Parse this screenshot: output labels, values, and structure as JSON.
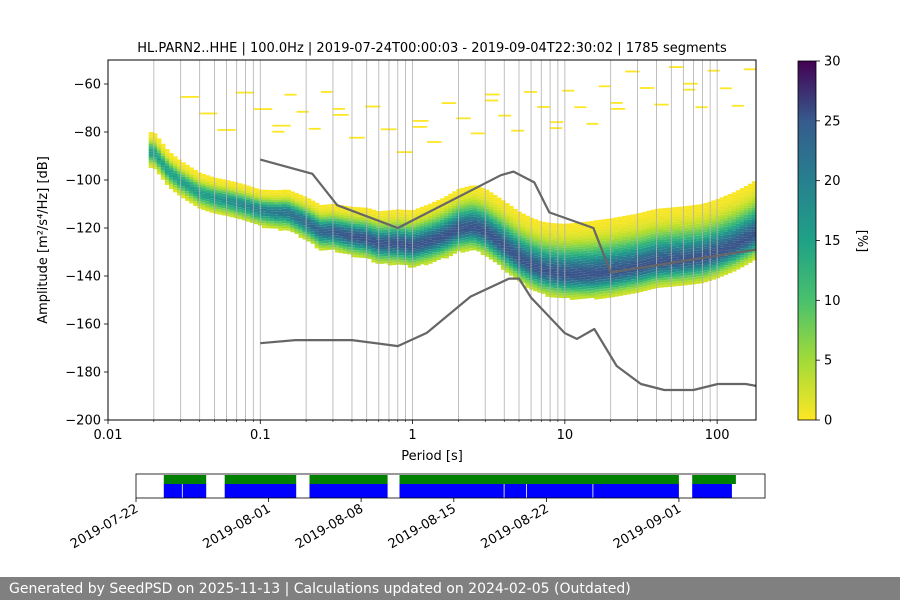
{
  "chart_data": {
    "type": "heatmap",
    "title": "HL.PARN2..HHE | 100.0Hz | 2019-07-24T00:00:03 - 2019-09-04T22:30:02 | 1785 segments",
    "xlabel": "Period [s]",
    "ylabel": "Amplitude [m²/s⁴/Hz] [dB]",
    "xscale": "log",
    "xlim": [
      0.01,
      180
    ],
    "ylim": [
      -200,
      -50
    ],
    "xticks": [
      0.01,
      0.1,
      1,
      10,
      100
    ],
    "xtick_labels": [
      "0.01",
      "0.1",
      "1",
      "10",
      "100"
    ],
    "yticks": [
      -200,
      -180,
      -160,
      -140,
      -120,
      -100,
      -80,
      -60
    ],
    "ytick_labels": [
      "−200",
      "−180",
      "−160",
      "−140",
      "−120",
      "−100",
      "−80",
      "−60"
    ],
    "grid": "x-major-and-minor",
    "colorbar": {
      "label": "[%]",
      "range": [
        0,
        30
      ],
      "ticks": [
        0,
        5,
        10,
        15,
        20,
        25,
        30
      ],
      "colormap": "viridis"
    },
    "mode_curve": {
      "x": [
        0.02,
        0.025,
        0.03,
        0.04,
        0.05,
        0.06,
        0.07,
        0.08,
        0.1,
        0.13,
        0.15,
        0.2,
        0.25,
        0.3,
        0.4,
        0.5,
        0.6,
        0.8,
        1.0,
        1.3,
        1.6,
        2.0,
        2.5,
        3.0,
        4.0,
        5.0,
        6.0,
        7.0,
        8.0,
        10,
        12,
        15,
        20,
        30,
        40,
        60,
        80,
        100,
        130,
        160,
        180
      ],
      "y": [
        -88,
        -96,
        -100,
        -105,
        -107,
        -108,
        -109,
        -110,
        -112,
        -113,
        -113,
        -117,
        -121,
        -121,
        -123,
        -124,
        -126,
        -126,
        -127,
        -125,
        -123,
        -120,
        -119,
        -121,
        -127,
        -132,
        -135,
        -137,
        -138,
        -139,
        -139,
        -139,
        -138,
        -136,
        -134,
        -133,
        -132,
        -130,
        -127,
        -124,
        -122
      ]
    },
    "noise_models": [
      {
        "name": "high-noise-model",
        "x": [
          0.1,
          0.22,
          0.32,
          0.8,
          3.8,
          4.6,
          6.3,
          7.9,
          15.4,
          20,
          180
        ],
        "y": [
          -91.5,
          -97.4,
          -110.5,
          -120,
          -98,
          -96.5,
          -101,
          -113.5,
          -120,
          -138.5,
          -129
        ]
      },
      {
        "name": "low-noise-model",
        "x": [
          0.1,
          0.17,
          0.4,
          0.8,
          1.24,
          2.4,
          4.3,
          5.0,
          6.0,
          10,
          12,
          15.6,
          21.9,
          31.6,
          45,
          70,
          101,
          154,
          180
        ],
        "y": [
          -168,
          -166.7,
          -166.7,
          -169.2,
          -163.7,
          -148.6,
          -141.1,
          -141.1,
          -149,
          -163.8,
          -166.2,
          -162.1,
          -177.5,
          -185,
          -187.5,
          -187.5,
          -185,
          -185,
          -185.8
        ]
      }
    ],
    "availability": {
      "tick_labels": [
        "2019-07-22",
        "2019-08-01",
        "2019-08-08",
        "2019-08-15",
        "2019-08-22",
        "2019-09-01"
      ],
      "tick_days": [
        0,
        10,
        17,
        24,
        31,
        41
      ],
      "xlim_days": [
        0,
        47.5
      ],
      "data_colors": {
        "available": "#0000ff",
        "processed": "#008000"
      },
      "segments_days": [
        [
          2.1,
          5.3
        ],
        [
          6.7,
          12.1
        ],
        [
          13.1,
          19.0
        ],
        [
          19.9,
          41.0
        ],
        [
          42.0,
          45.0
        ]
      ],
      "processed_days": [
        [
          2.1,
          5.3
        ],
        [
          6.7,
          12.1
        ],
        [
          13.1,
          19.0
        ],
        [
          19.9,
          41.0
        ],
        [
          42.0,
          45.3
        ]
      ],
      "inner_markers_days": [
        3.5,
        27.8,
        34.5,
        29.5
      ]
    }
  },
  "footer": {
    "text": "Generated by SeedPSD on 2025-11-13 | Calculations updated on 2024-02-05 (Outdated)"
  }
}
